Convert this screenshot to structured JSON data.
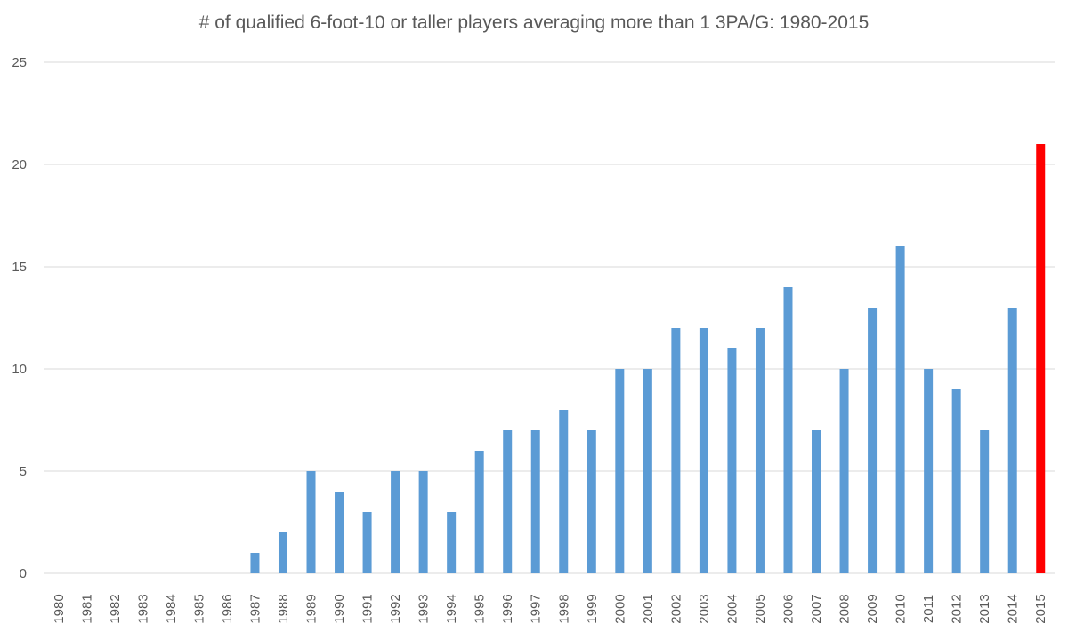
{
  "chart_data": {
    "type": "bar",
    "title": "# of qualified 6-foot-10 or taller players averaging more than 1 3PA/G: 1980-2015",
    "xlabel": "",
    "ylabel": "",
    "categories": [
      "1980",
      "1981",
      "1982",
      "1983",
      "1984",
      "1985",
      "1986",
      "1987",
      "1988",
      "1989",
      "1990",
      "1991",
      "1992",
      "1993",
      "1994",
      "1995",
      "1996",
      "1997",
      "1998",
      "1999",
      "2000",
      "2001",
      "2002",
      "2003",
      "2004",
      "2005",
      "2006",
      "2007",
      "2008",
      "2009",
      "2010",
      "2011",
      "2012",
      "2013",
      "2014",
      "2015"
    ],
    "values": [
      0,
      0,
      0,
      0,
      0,
      0,
      0,
      1,
      2,
      5,
      4,
      3,
      5,
      5,
      3,
      6,
      7,
      7,
      8,
      7,
      10,
      10,
      12,
      12,
      11,
      12,
      14,
      7,
      10,
      13,
      16,
      10,
      9,
      7,
      13,
      21
    ],
    "ylim": [
      0,
      25
    ],
    "yticks": [
      0,
      5,
      10,
      15,
      20,
      25
    ],
    "grid": true,
    "legend": "none",
    "colors": {
      "bar": "#5b9bd5",
      "highlight_bar": "#ff0000",
      "highlight_category": "2015",
      "gridline": "#d9d9d9",
      "text": "#595959"
    }
  }
}
